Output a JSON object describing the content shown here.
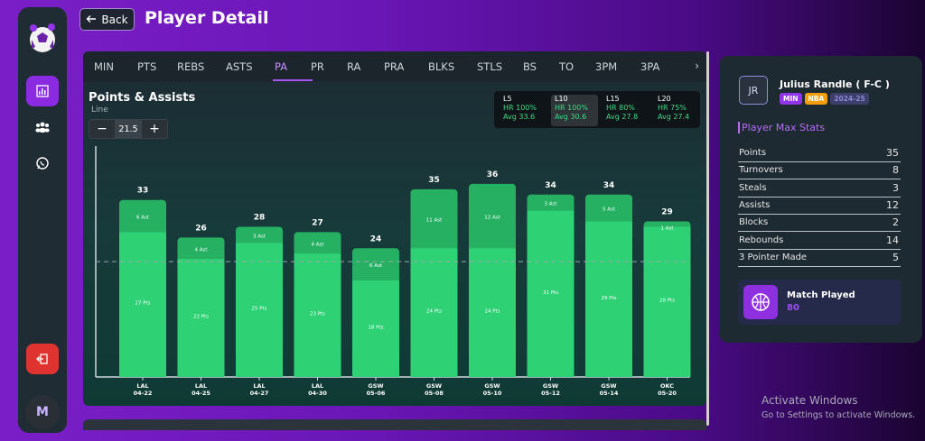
{
  "header": {
    "back_label": "Back",
    "title": "Player Detail"
  },
  "sidebar": {
    "avatar_initial": "M",
    "items": [
      {
        "name": "chart-icon",
        "active": true
      },
      {
        "name": "users-icon",
        "active": false
      },
      {
        "name": "whatsapp-icon",
        "active": false
      }
    ]
  },
  "tabs": [
    "MIN",
    "PTS",
    "REBS",
    "ASTS",
    "PA",
    "PR",
    "RA",
    "PRA",
    "BLKS",
    "STLS",
    "BS",
    "TO",
    "3PM",
    "3PA"
  ],
  "active_tab": "PA",
  "chart": {
    "title": "Points & Assists",
    "line_label": "Line",
    "line_value": "21.5",
    "hit_rates": [
      {
        "label": "L5",
        "hr": "HR 100%",
        "avg": "Avg 33.6",
        "active": false
      },
      {
        "label": "L10",
        "hr": "HR 100%",
        "avg": "Avg 30.6",
        "active": true
      },
      {
        "label": "L15",
        "hr": "HR 80%",
        "avg": "Avg 27.8",
        "active": false
      },
      {
        "label": "L20",
        "hr": "HR 75%",
        "avg": "Avg 27.4",
        "active": false
      }
    ]
  },
  "chart_data": {
    "type": "bar",
    "stacked": true,
    "categories": [
      [
        "LAL",
        "04-22"
      ],
      [
        "LAL",
        "04-25"
      ],
      [
        "LAL",
        "04-27"
      ],
      [
        "LAL",
        "04-30"
      ],
      [
        "GSW",
        "05-06"
      ],
      [
        "GSW",
        "05-08"
      ],
      [
        "GSW",
        "05-10"
      ],
      [
        "GSW",
        "05-12"
      ],
      [
        "GSW",
        "05-14"
      ],
      [
        "OKC",
        "05-20"
      ]
    ],
    "totals": [
      33,
      26,
      28,
      27,
      24,
      35,
      36,
      34,
      34,
      29
    ],
    "series": [
      {
        "name": "Pts",
        "values": [
          27,
          22,
          25,
          23,
          18,
          24,
          24,
          31,
          29,
          28
        ]
      },
      {
        "name": "Ast",
        "values": [
          6,
          4,
          3,
          4,
          6,
          11,
          12,
          3,
          5,
          1
        ]
      }
    ],
    "line": 21.5,
    "ylim": [
      0,
      40
    ],
    "colors": {
      "pts": "#2ecc71",
      "ast": "#27ae60"
    }
  },
  "player": {
    "initials": "JR",
    "name": "Julius Randle ( F-C )",
    "badges": [
      "MIN",
      "NBA",
      "2024-25"
    ],
    "max_stats_title": "Player Max Stats",
    "max_stats": [
      {
        "label": "Points",
        "value": "35"
      },
      {
        "label": "Turnovers",
        "value": "8"
      },
      {
        "label": "Steals",
        "value": "3"
      },
      {
        "label": "Assists",
        "value": "12"
      },
      {
        "label": "Blocks",
        "value": "2"
      },
      {
        "label": "Rebounds",
        "value": "14"
      },
      {
        "label": "3 Pointer Made",
        "value": "5"
      }
    ],
    "match_played_label": "Match Played",
    "match_played_value": "80"
  },
  "watermark": {
    "line1": "Activate Windows",
    "line2": "Go to Settings to activate Windows."
  }
}
